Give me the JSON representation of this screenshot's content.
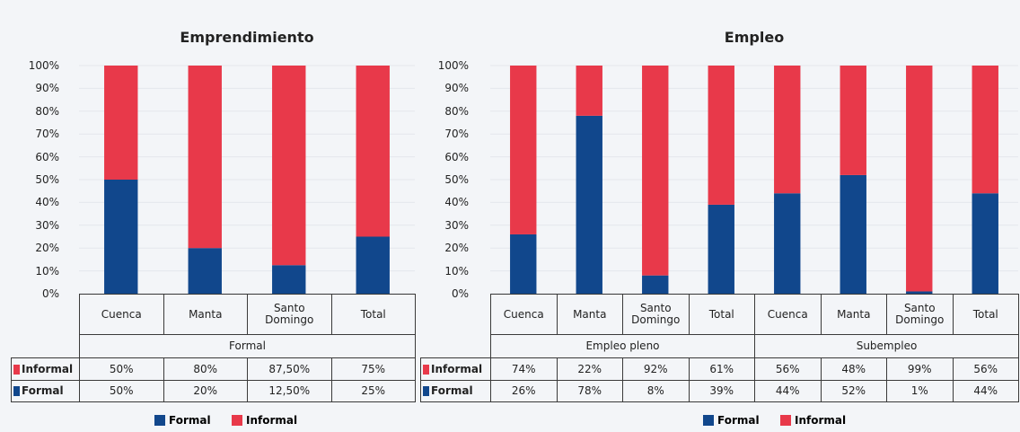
{
  "chart_data": [
    {
      "type": "bar",
      "stacked": true,
      "title": "Emprendimiento",
      "categories": [
        "Cuenca",
        "Manta",
        "Santo Domingo",
        "Total"
      ],
      "group_labels": [
        "Formal"
      ],
      "series": [
        {
          "name": "Formal",
          "color": "#11478c",
          "values": [
            50,
            20,
            12.5,
            25
          ],
          "value_labels": [
            "50%",
            "20%",
            "12,50%",
            "25%"
          ]
        },
        {
          "name": "Informal",
          "color": "#e8394a",
          "values": [
            50,
            80,
            87.5,
            75
          ],
          "value_labels": [
            "50%",
            "80%",
            "87,50%",
            "75%"
          ]
        }
      ],
      "ylim": [
        0,
        100
      ],
      "yticks": [
        {
          "value": 0,
          "label": "0%"
        },
        {
          "value": 10,
          "label": "10%"
        },
        {
          "value": 20,
          "label": "20%"
        },
        {
          "value": 30,
          "label": "30%"
        },
        {
          "value": 40,
          "label": "40%"
        },
        {
          "value": 50,
          "label": "50%"
        },
        {
          "value": 60,
          "label": "60%"
        },
        {
          "value": 70,
          "label": "70%"
        },
        {
          "value": 80,
          "label": "80%"
        },
        {
          "value": 90,
          "label": "90%"
        },
        {
          "value": 100,
          "label": "100%"
        }
      ],
      "grid": true
    },
    {
      "type": "bar",
      "stacked": true,
      "title": "Empleo",
      "categories": [
        "Cuenca",
        "Manta",
        "Santo Domingo",
        "Total",
        "Cuenca",
        "Manta",
        "Santo Domingo",
        "Total"
      ],
      "group_labels": [
        "Empleo pleno",
        "Subempleo"
      ],
      "series": [
        {
          "name": "Formal",
          "color": "#11478c",
          "values": [
            26,
            78,
            8,
            39,
            44,
            52,
            1,
            44
          ],
          "value_labels": [
            "26%",
            "78%",
            "8%",
            "39%",
            "44%",
            "52%",
            "1%",
            "44%"
          ]
        },
        {
          "name": "Informal",
          "color": "#e8394a",
          "values": [
            74,
            22,
            92,
            61,
            56,
            48,
            99,
            56
          ],
          "value_labels": [
            "74%",
            "22%",
            "92%",
            "61%",
            "56%",
            "48%",
            "99%",
            "56%"
          ]
        }
      ],
      "ylim": [
        0,
        100
      ],
      "yticks": [
        {
          "value": 0,
          "label": "0%"
        },
        {
          "value": 10,
          "label": "10%"
        },
        {
          "value": 20,
          "label": "20%"
        },
        {
          "value": 30,
          "label": "30%"
        },
        {
          "value": 40,
          "label": "40%"
        },
        {
          "value": 50,
          "label": "50%"
        },
        {
          "value": 60,
          "label": "60%"
        },
        {
          "value": 70,
          "label": "70%"
        },
        {
          "value": 80,
          "label": "80%"
        },
        {
          "value": 90,
          "label": "90%"
        },
        {
          "value": 100,
          "label": "100%"
        }
      ],
      "grid": true
    }
  ]
}
